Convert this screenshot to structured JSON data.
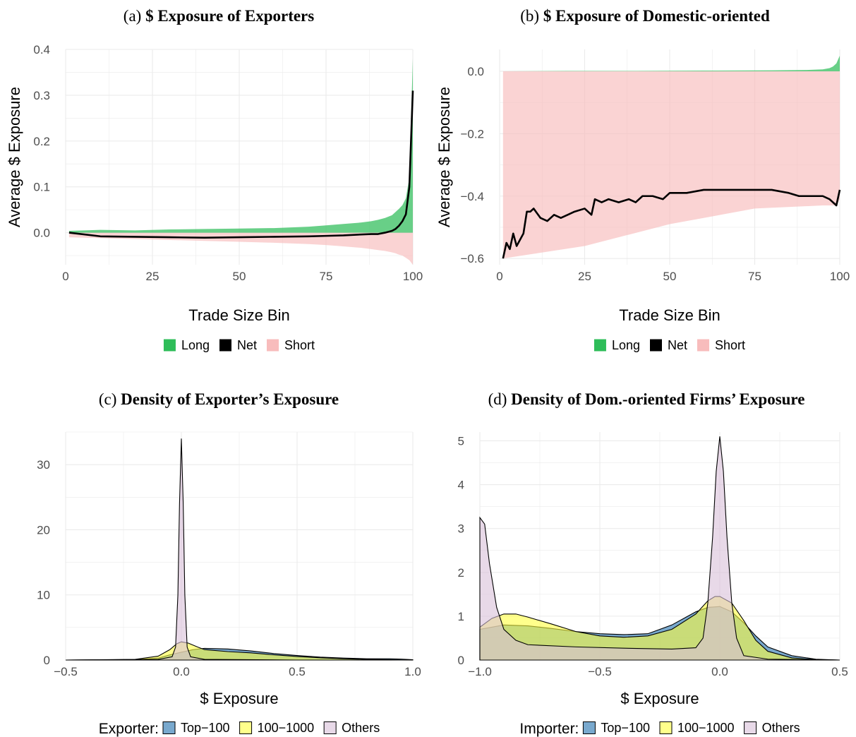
{
  "chart_data": [
    {
      "id": "a",
      "type": "area",
      "title_prefix": "(a) ",
      "title": "$ Exposure of Exporters",
      "xlabel": "Trade Size Bin",
      "ylabel": "Average $ Exposure",
      "xlim": [
        0,
        100
      ],
      "ylim": [
        -0.07,
        0.4
      ],
      "xticks": [
        0,
        25,
        50,
        75,
        100
      ],
      "xtick_labels": [
        "0",
        "25",
        "50",
        "75",
        "100"
      ],
      "yticks": [
        0.0,
        0.1,
        0.2,
        0.3,
        0.4
      ],
      "ytick_labels": [
        "0.0",
        "0.1",
        "0.2",
        "0.3",
        "0.4"
      ],
      "grid": true,
      "legend_position": "bottom",
      "series": [
        {
          "name": "Long",
          "role": "long-area",
          "color": "#2ebd59",
          "x": [
            1,
            10,
            20,
            30,
            40,
            50,
            60,
            70,
            75,
            80,
            85,
            88,
            90,
            92,
            94,
            95,
            96,
            97,
            98,
            99,
            100
          ],
          "y": [
            0.004,
            0.006,
            0.005,
            0.007,
            0.008,
            0.009,
            0.01,
            0.013,
            0.016,
            0.019,
            0.022,
            0.025,
            0.028,
            0.032,
            0.038,
            0.045,
            0.052,
            0.06,
            0.075,
            0.12,
            0.38
          ]
        },
        {
          "name": "Net",
          "role": "net-line",
          "color": "#000000",
          "x": [
            1,
            10,
            20,
            30,
            40,
            50,
            60,
            70,
            75,
            80,
            85,
            88,
            90,
            92,
            94,
            95,
            96,
            97,
            98,
            99,
            100
          ],
          "y": [
            0.0,
            -0.008,
            -0.009,
            -0.01,
            -0.011,
            -0.01,
            -0.009,
            -0.008,
            -0.007,
            -0.006,
            -0.004,
            -0.003,
            -0.003,
            0.0,
            0.004,
            0.008,
            0.015,
            0.025,
            0.04,
            0.1,
            0.31
          ]
        },
        {
          "name": "Short",
          "role": "short-area",
          "color": "#f8bcbc",
          "x": [
            1,
            10,
            20,
            30,
            40,
            50,
            60,
            70,
            75,
            80,
            85,
            88,
            90,
            92,
            94,
            95,
            96,
            97,
            98,
            99,
            100
          ],
          "y": [
            -0.01,
            -0.012,
            -0.014,
            -0.016,
            -0.018,
            -0.02,
            -0.022,
            -0.025,
            -0.027,
            -0.03,
            -0.033,
            -0.036,
            -0.038,
            -0.04,
            -0.043,
            -0.045,
            -0.048,
            -0.05,
            -0.055,
            -0.06,
            -0.07
          ]
        }
      ]
    },
    {
      "id": "b",
      "type": "area",
      "title_prefix": "(b) ",
      "title": "$ Exposure of Domestic-oriented",
      "xlabel": "Trade Size Bin",
      "ylabel": "Average $ Exposure",
      "xlim": [
        0,
        100
      ],
      "ylim": [
        -0.62,
        0.07
      ],
      "xticks": [
        0,
        25,
        50,
        75,
        100
      ],
      "xtick_labels": [
        "0",
        "25",
        "50",
        "75",
        "100"
      ],
      "yticks": [
        0.0,
        -0.2,
        -0.4,
        -0.6
      ],
      "ytick_labels": [
        "0.0",
        "−0.2",
        "−0.4",
        "−0.6"
      ],
      "grid": true,
      "legend_position": "bottom",
      "series": [
        {
          "name": "Long",
          "role": "long-area",
          "color": "#2ebd59",
          "x": [
            1,
            20,
            40,
            60,
            80,
            90,
            95,
            97,
            98,
            99,
            100
          ],
          "y": [
            0.0,
            0.001,
            0.001,
            0.002,
            0.003,
            0.004,
            0.006,
            0.01,
            0.015,
            0.025,
            0.05
          ]
        },
        {
          "name": "Net",
          "role": "net-line",
          "color": "#000000",
          "x": [
            1,
            2,
            3,
            4,
            5,
            6,
            7,
            8,
            9,
            10,
            12,
            14,
            16,
            18,
            20,
            22,
            25,
            27,
            28,
            30,
            32,
            35,
            38,
            40,
            42,
            45,
            48,
            50,
            55,
            60,
            65,
            70,
            75,
            80,
            85,
            88,
            90,
            92,
            95,
            97,
            99,
            100
          ],
          "y": [
            -0.6,
            -0.55,
            -0.57,
            -0.52,
            -0.56,
            -0.54,
            -0.52,
            -0.45,
            -0.45,
            -0.44,
            -0.47,
            -0.48,
            -0.46,
            -0.47,
            -0.46,
            -0.45,
            -0.44,
            -0.46,
            -0.41,
            -0.42,
            -0.41,
            -0.42,
            -0.41,
            -0.42,
            -0.4,
            -0.4,
            -0.41,
            -0.39,
            -0.39,
            -0.38,
            -0.38,
            -0.38,
            -0.38,
            -0.38,
            -0.39,
            -0.4,
            -0.4,
            -0.4,
            -0.4,
            -0.41,
            -0.43,
            -0.38
          ]
        },
        {
          "name": "Short",
          "role": "short-area",
          "color": "#f8bcbc",
          "x": [
            1,
            25,
            50,
            75,
            95,
            99,
            100
          ],
          "y": [
            -0.6,
            -0.56,
            -0.49,
            -0.44,
            -0.43,
            -0.43,
            -0.41
          ]
        }
      ]
    },
    {
      "id": "c",
      "type": "area",
      "subtype": "density",
      "title_prefix": "(c) ",
      "title": "Density of Exporter’s Exposure",
      "xlabel": "$ Exposure",
      "ylabel": "",
      "xlim": [
        -0.5,
        1.0
      ],
      "ylim": [
        0,
        35
      ],
      "xticks": [
        -0.5,
        0.0,
        0.5,
        1.0
      ],
      "xtick_labels": [
        "−0.5",
        "0.0",
        "0.5",
        "1.0"
      ],
      "yticks": [
        0,
        10,
        20,
        30
      ],
      "ytick_labels": [
        "0",
        "10",
        "20",
        "30"
      ],
      "grid": true,
      "legend_title": "Exporter:",
      "legend_position": "bottom",
      "series": [
        {
          "name": "Top−100",
          "color": "#1f6fad",
          "x": [
            -0.5,
            -0.2,
            -0.1,
            -0.05,
            0.0,
            0.05,
            0.1,
            0.2,
            0.3,
            0.4,
            0.5,
            0.6,
            0.7,
            0.8,
            0.9,
            0.95,
            1.0
          ],
          "y": [
            0.0,
            0.05,
            0.3,
            0.8,
            1.2,
            1.6,
            1.8,
            1.7,
            1.4,
            1.0,
            0.7,
            0.45,
            0.3,
            0.2,
            0.2,
            0.15,
            0.05
          ]
        },
        {
          "name": "100−1000",
          "color": "#ffff40",
          "x": [
            -0.5,
            -0.2,
            -0.1,
            -0.05,
            -0.02,
            0.0,
            0.03,
            0.07,
            0.1,
            0.2,
            0.3,
            0.4,
            0.5,
            0.6,
            0.7,
            0.8,
            0.9,
            1.0
          ],
          "y": [
            0.0,
            0.1,
            0.6,
            1.6,
            2.5,
            2.8,
            2.6,
            2.0,
            1.6,
            1.3,
            1.1,
            0.8,
            0.55,
            0.35,
            0.2,
            0.1,
            0.05,
            0.0
          ]
        },
        {
          "name": "Others",
          "color": "#d8bfd8",
          "x": [
            -0.5,
            -0.1,
            -0.04,
            -0.025,
            -0.015,
            -0.008,
            0.0,
            0.008,
            0.015,
            0.025,
            0.04,
            0.1,
            0.5,
            1.0
          ],
          "y": [
            0.0,
            0.1,
            0.5,
            2.0,
            10.0,
            24.0,
            34.0,
            24.0,
            10.0,
            2.0,
            0.5,
            0.1,
            0.0,
            0.0
          ]
        }
      ]
    },
    {
      "id": "d",
      "type": "area",
      "subtype": "density",
      "title_prefix": "(d) ",
      "title": "Density of Dom.-oriented Firms’ Exposure",
      "xlabel": "$ Exposure",
      "ylabel": "",
      "xlim": [
        -1.0,
        0.5
      ],
      "ylim": [
        0,
        5.2
      ],
      "xticks": [
        -1.0,
        -0.5,
        0.0,
        0.5
      ],
      "xtick_labels": [
        "−1.0",
        "−0.5",
        "0.0",
        "0.5"
      ],
      "yticks": [
        0,
        1,
        2,
        3,
        4,
        5
      ],
      "ytick_labels": [
        "0",
        "1",
        "2",
        "3",
        "4",
        "5"
      ],
      "grid": true,
      "legend_title": "Importer:",
      "legend_position": "bottom",
      "series": [
        {
          "name": "Top−100",
          "color": "#1f6fad",
          "x": [
            -1.0,
            -0.9,
            -0.8,
            -0.7,
            -0.6,
            -0.5,
            -0.4,
            -0.3,
            -0.2,
            -0.15,
            -0.1,
            -0.05,
            0.0,
            0.05,
            0.1,
            0.15,
            0.2,
            0.3,
            0.4,
            0.5
          ],
          "y": [
            0.7,
            0.8,
            0.78,
            0.72,
            0.65,
            0.6,
            0.58,
            0.6,
            0.8,
            0.95,
            1.1,
            1.2,
            1.22,
            1.1,
            0.85,
            0.55,
            0.3,
            0.1,
            0.02,
            0.0
          ]
        },
        {
          "name": "100−1000",
          "color": "#ffff40",
          "x": [
            -1.0,
            -0.95,
            -0.9,
            -0.85,
            -0.8,
            -0.7,
            -0.6,
            -0.5,
            -0.4,
            -0.3,
            -0.2,
            -0.1,
            -0.05,
            -0.02,
            0.0,
            0.05,
            0.1,
            0.15,
            0.2,
            0.3,
            0.4,
            0.5
          ],
          "y": [
            0.75,
            0.95,
            1.05,
            1.05,
            0.98,
            0.82,
            0.65,
            0.55,
            0.52,
            0.55,
            0.7,
            1.05,
            1.35,
            1.45,
            1.45,
            1.3,
            0.9,
            0.45,
            0.2,
            0.05,
            0.01,
            0.0
          ]
        },
        {
          "name": "Others",
          "color": "#d8bfd8",
          "x": [
            -1.0,
            -0.98,
            -0.96,
            -0.93,
            -0.9,
            -0.85,
            -0.8,
            -0.6,
            -0.4,
            -0.2,
            -0.1,
            -0.07,
            -0.05,
            -0.03,
            -0.015,
            0.0,
            0.015,
            0.03,
            0.05,
            0.07,
            0.1,
            0.2,
            0.5
          ],
          "y": [
            3.25,
            3.1,
            2.2,
            1.2,
            0.7,
            0.45,
            0.35,
            0.3,
            0.27,
            0.25,
            0.28,
            0.5,
            1.3,
            2.8,
            4.3,
            5.1,
            4.3,
            2.8,
            1.3,
            0.5,
            0.1,
            0.02,
            0.0
          ]
        }
      ]
    }
  ]
}
